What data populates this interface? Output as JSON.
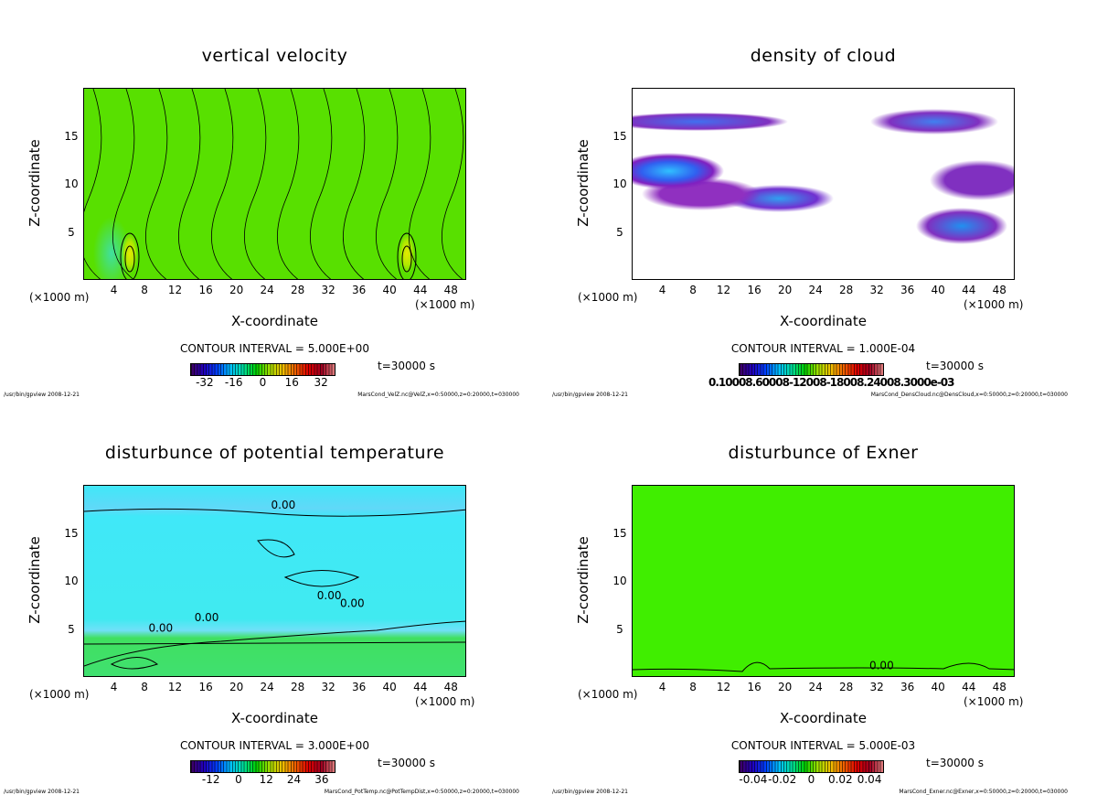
{
  "chart_data": [
    {
      "type": "heatmap",
      "title": "vertical velocity",
      "xlabel": "X-coordinate",
      "ylabel": "Z-coordinate",
      "x_unit": "(×1000 m)",
      "xlim": [
        0,
        50
      ],
      "ylim": [
        0,
        20
      ],
      "xticks": [
        4,
        8,
        12,
        16,
        20,
        24,
        28,
        32,
        36,
        40,
        44,
        48
      ],
      "yticks": [
        5,
        10,
        15
      ],
      "contour_interval": "CONTOUR INTERVAL = 5.000E+00",
      "colorbar_labels": [
        "-32",
        "-16",
        "0",
        "16",
        "32"
      ],
      "colorbar_values": [
        -32,
        -16,
        0,
        16,
        32
      ],
      "colorbar_range": [
        -40,
        40
      ],
      "time": "t=30000 s",
      "footer_left": "/usr/bin/gpview  2008-12-21",
      "footer_right": "MarsCond_VelZ.nc@VelZ,x=0:50000,z=0:20000,t=030000",
      "contour_labels": []
    },
    {
      "type": "heatmap",
      "title": "density of cloud",
      "xlabel": "X-coordinate",
      "ylabel": "Z-coordinate",
      "x_unit": "(×1000 m)",
      "xlim": [
        0,
        50
      ],
      "ylim": [
        0,
        20
      ],
      "xticks": [
        4,
        8,
        12,
        16,
        20,
        24,
        28,
        32,
        36,
        40,
        44,
        48
      ],
      "yticks": [
        5,
        10,
        15
      ],
      "contour_interval": "CONTOUR INTERVAL = 1.000E-04",
      "colorbar_text": "0.10008.60008-12008-18008.24008.3000e-03",
      "time": "t=30000 s",
      "footer_left": "/usr/bin/gpview  2008-12-21",
      "footer_right": "MarsCond_DensCloud.nc@DensCloud,x=0:50000,z=0:20000,t=030000",
      "contour_labels": []
    },
    {
      "type": "heatmap",
      "title": "disturbunce of potential temperature",
      "xlabel": "X-coordinate",
      "ylabel": "Z-coordinate",
      "x_unit": "(×1000 m)",
      "xlim": [
        0,
        50
      ],
      "ylim": [
        0,
        20
      ],
      "xticks": [
        4,
        8,
        12,
        16,
        20,
        24,
        28,
        32,
        36,
        40,
        44,
        48
      ],
      "yticks": [
        5,
        10,
        15
      ],
      "contour_interval": "CONTOUR INTERVAL = 3.000E+00",
      "colorbar_labels": [
        "-12",
        "0",
        "12",
        "24",
        "36"
      ],
      "colorbar_values": [
        -12,
        0,
        12,
        24,
        36
      ],
      "colorbar_range": [
        -21,
        42
      ],
      "time": "t=30000 s",
      "footer_left": "/usr/bin/gpview  2008-12-21",
      "footer_right": "MarsCond_PotTemp.nc@PotTempDist,x=0:50000,z=0:20000,t=030000",
      "contour_labels": [
        {
          "text": "0.00",
          "x": 26,
          "y": 17.6
        },
        {
          "text": "0.00",
          "x": 32,
          "y": 8.2
        },
        {
          "text": "0.00",
          "x": 35,
          "y": 7.4
        },
        {
          "text": "0.00",
          "x": 16,
          "y": 5.9
        },
        {
          "text": "0.00",
          "x": 10,
          "y": 4.8
        }
      ]
    },
    {
      "type": "heatmap",
      "title": "disturbunce of Exner",
      "xlabel": "X-coordinate",
      "ylabel": "Z-coordinate",
      "x_unit": "(×1000 m)",
      "xlim": [
        0,
        50
      ],
      "ylim": [
        0,
        20
      ],
      "xticks": [
        4,
        8,
        12,
        16,
        20,
        24,
        28,
        32,
        36,
        40,
        44,
        48
      ],
      "yticks": [
        5,
        10,
        15
      ],
      "contour_interval": "CONTOUR INTERVAL = 5.000E-03",
      "colorbar_labels": [
        "-0.04",
        "-0.02",
        "0",
        "0.02",
        "0.04"
      ],
      "colorbar_values": [
        -0.04,
        -0.02,
        0,
        0.02,
        0.04
      ],
      "colorbar_range": [
        -0.05,
        0.05
      ],
      "time": "t=30000 s",
      "footer_left": "/usr/bin/gpview  2008-12-21",
      "footer_right": "MarsCond_Exner.nc@Exner,x=0:50000,z=0:20000,t=030000",
      "contour_labels": [
        {
          "text": "0.00",
          "x": 32.5,
          "y": 0.9
        }
      ]
    }
  ]
}
